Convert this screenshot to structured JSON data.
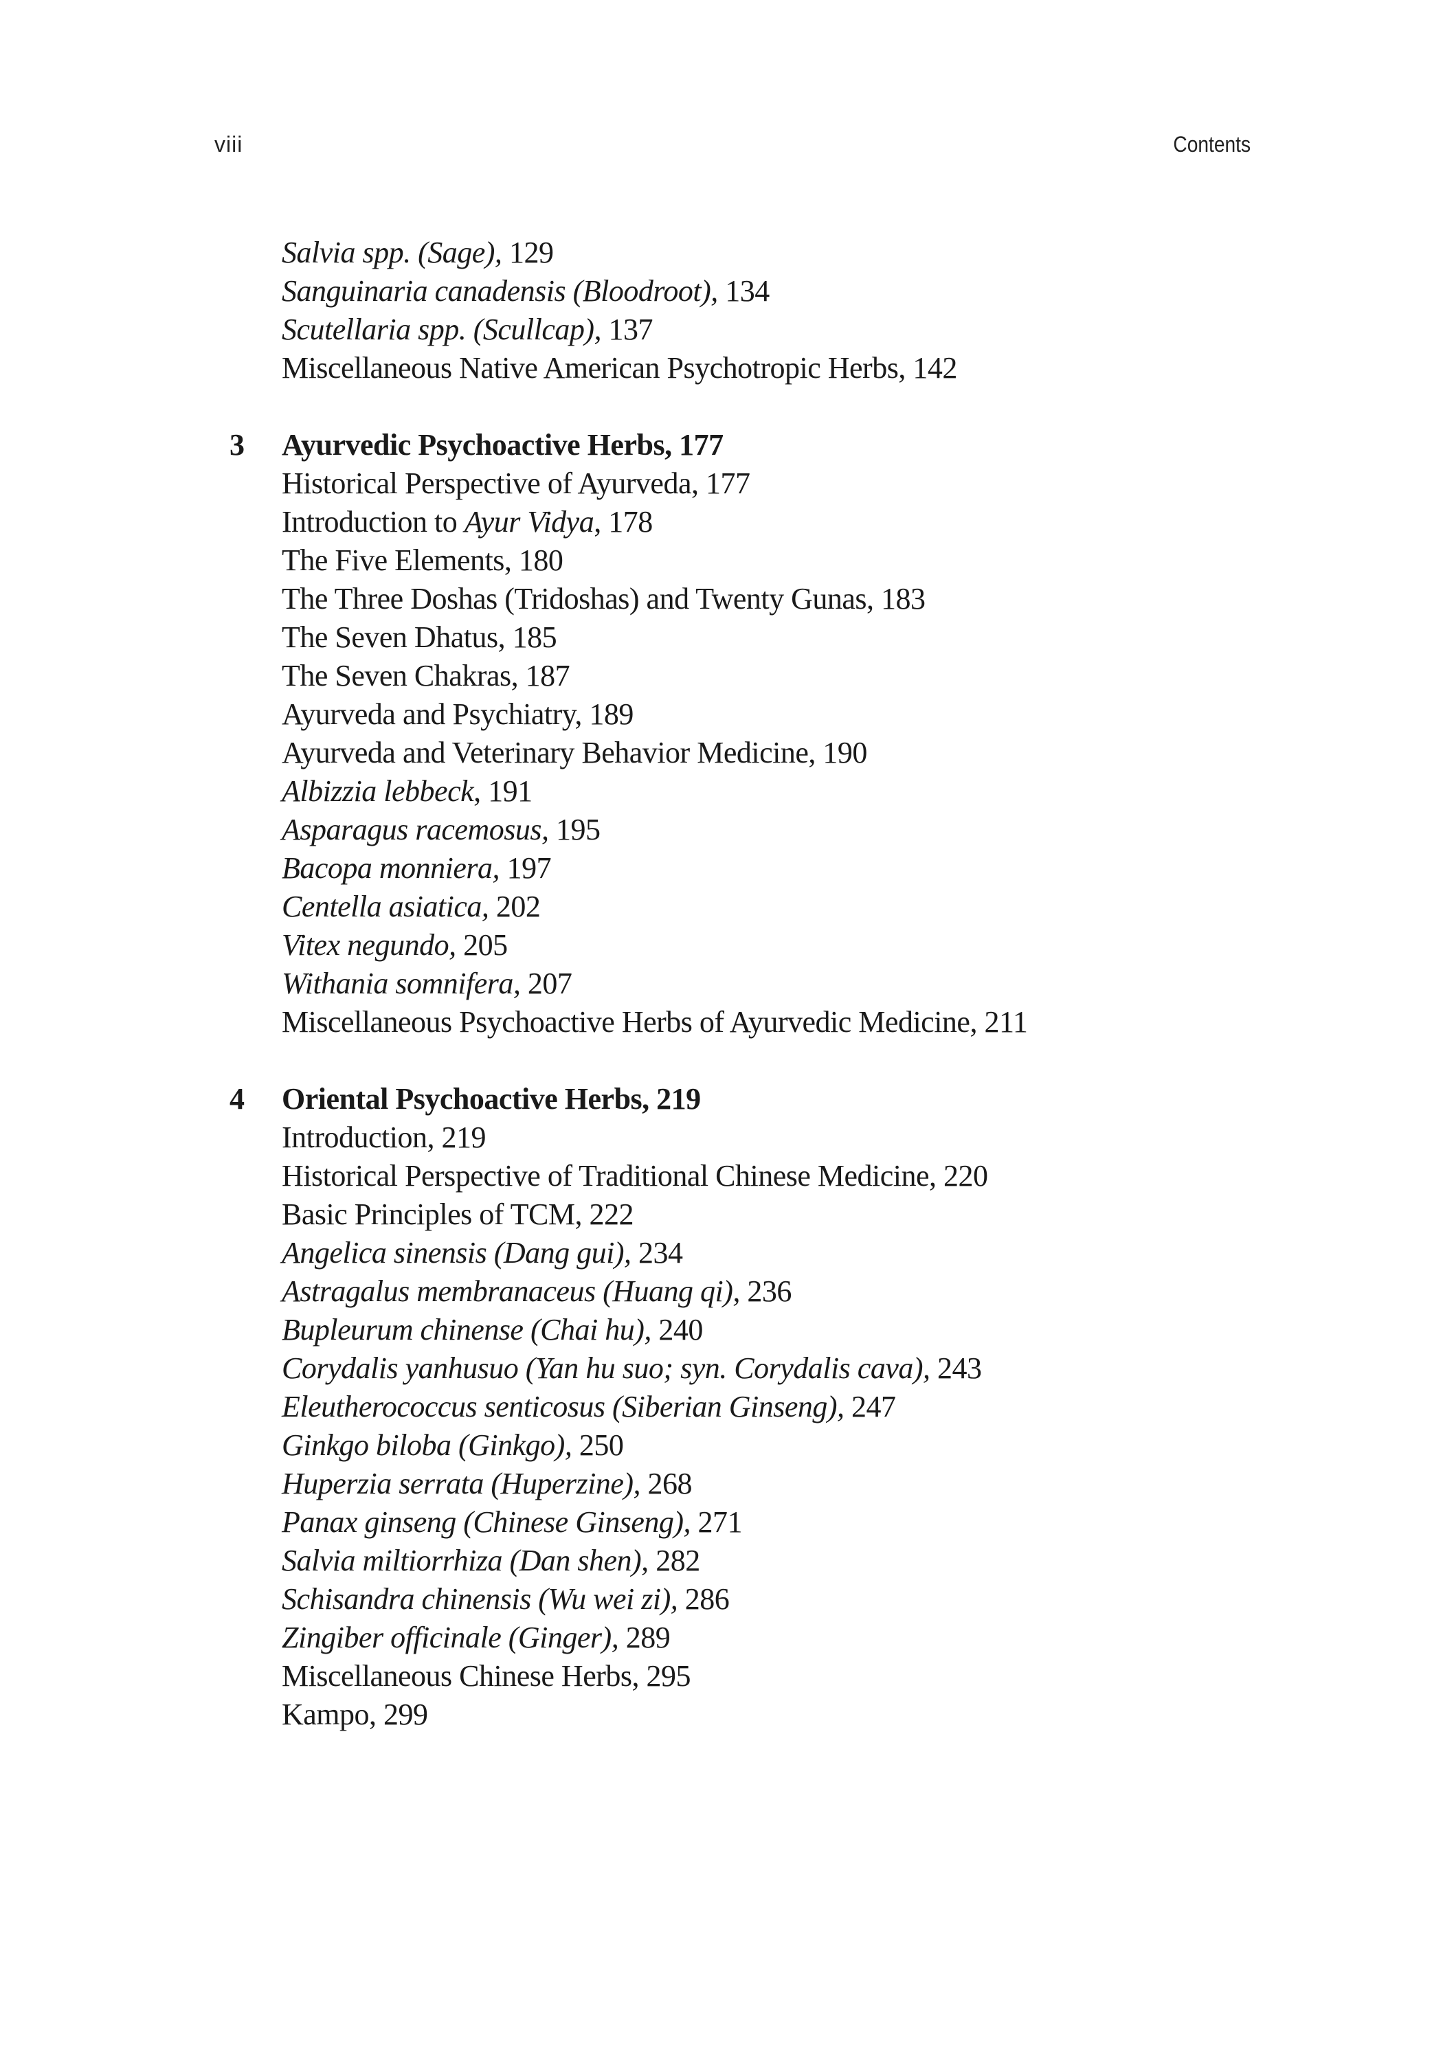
{
  "header": {
    "folio": "viii",
    "running_title": "Contents"
  },
  "groups": [
    {
      "entries": [
        {
          "segments": [
            {
              "text": "Salvia spp. (Sage),",
              "italic": true
            },
            {
              "text": " 129",
              "italic": false
            }
          ]
        },
        {
          "segments": [
            {
              "text": "Sanguinaria canadensis (Bloodroot),",
              "italic": true
            },
            {
              "text": " 134",
              "italic": false
            }
          ]
        },
        {
          "segments": [
            {
              "text": "Scutellaria spp. (Scullcap),",
              "italic": true
            },
            {
              "text": " 137",
              "italic": false
            }
          ]
        },
        {
          "segments": [
            {
              "text": "Miscellaneous Native American Psychotropic Herbs, 142",
              "italic": false
            }
          ]
        }
      ]
    },
    {
      "chapter_number": "3",
      "chapter_title": "Ayurvedic Psychoactive Herbs, 177",
      "entries": [
        {
          "segments": [
            {
              "text": "Historical Perspective of Ayurveda, 177",
              "italic": false
            }
          ]
        },
        {
          "segments": [
            {
              "text": "Introduction to ",
              "italic": false
            },
            {
              "text": "Ayur Vidya",
              "italic": true
            },
            {
              "text": ", 178",
              "italic": false
            }
          ]
        },
        {
          "segments": [
            {
              "text": "The Five Elements, 180",
              "italic": false
            }
          ]
        },
        {
          "segments": [
            {
              "text": "The Three Doshas (Tridoshas) and Twenty Gunas, 183",
              "italic": false
            }
          ]
        },
        {
          "segments": [
            {
              "text": "The Seven Dhatus, 185",
              "italic": false
            }
          ]
        },
        {
          "segments": [
            {
              "text": "The Seven Chakras, 187",
              "italic": false
            }
          ]
        },
        {
          "segments": [
            {
              "text": "Ayurveda and Psychiatry, 189",
              "italic": false
            }
          ]
        },
        {
          "segments": [
            {
              "text": "Ayurveda and Veterinary Behavior Medicine, 190",
              "italic": false
            }
          ]
        },
        {
          "segments": [
            {
              "text": "Albizzia lebbeck",
              "italic": true
            },
            {
              "text": ", 191",
              "italic": false
            }
          ]
        },
        {
          "segments": [
            {
              "text": "Asparagus racemosus,",
              "italic": true
            },
            {
              "text": " 195",
              "italic": false
            }
          ]
        },
        {
          "segments": [
            {
              "text": "Bacopa monniera,",
              "italic": true
            },
            {
              "text": " 197",
              "italic": false
            }
          ]
        },
        {
          "segments": [
            {
              "text": "Centella asiatica,",
              "italic": true
            },
            {
              "text": " 202",
              "italic": false
            }
          ]
        },
        {
          "segments": [
            {
              "text": "Vitex negundo,",
              "italic": true
            },
            {
              "text": " 205",
              "italic": false
            }
          ]
        },
        {
          "segments": [
            {
              "text": "Withania somnifera,",
              "italic": true
            },
            {
              "text": " 207",
              "italic": false
            }
          ]
        },
        {
          "segments": [
            {
              "text": "Miscellaneous Psychoactive Herbs of Ayurvedic Medicine, 211",
              "italic": false
            }
          ]
        }
      ]
    },
    {
      "chapter_number": "4",
      "chapter_title": "Oriental Psychoactive Herbs, 219",
      "entries": [
        {
          "segments": [
            {
              "text": "Introduction, 219",
              "italic": false
            }
          ]
        },
        {
          "segments": [
            {
              "text": "Historical Perspective of Traditional Chinese Medicine, 220",
              "italic": false
            }
          ]
        },
        {
          "segments": [
            {
              "text": "Basic Principles of TCM, 222",
              "italic": false
            }
          ]
        },
        {
          "segments": [
            {
              "text": "Angelica sinensis (Dang gui),",
              "italic": true
            },
            {
              "text": " 234",
              "italic": false
            }
          ]
        },
        {
          "segments": [
            {
              "text": "Astragalus membranaceus (Huang qi),",
              "italic": true
            },
            {
              "text": " 236",
              "italic": false
            }
          ]
        },
        {
          "segments": [
            {
              "text": "Bupleurum chinense (Chai hu),",
              "italic": true
            },
            {
              "text": " 240",
              "italic": false
            }
          ]
        },
        {
          "segments": [
            {
              "text": "Corydalis yanhusuo (Yan hu suo; syn. Corydalis cava),",
              "italic": true
            },
            {
              "text": " 243",
              "italic": false
            }
          ]
        },
        {
          "segments": [
            {
              "text": "Eleutherococcus senticosus (Siberian Ginseng),",
              "italic": true
            },
            {
              "text": " 247",
              "italic": false
            }
          ]
        },
        {
          "segments": [
            {
              "text": "Ginkgo biloba (Ginkgo),",
              "italic": true
            },
            {
              "text": " 250",
              "italic": false
            }
          ]
        },
        {
          "segments": [
            {
              "text": "Huperzia serrata (Huperzine),",
              "italic": true
            },
            {
              "text": " 268",
              "italic": false
            }
          ]
        },
        {
          "segments": [
            {
              "text": "Panax ginseng (Chinese Ginseng),",
              "italic": true
            },
            {
              "text": " 271",
              "italic": false
            }
          ]
        },
        {
          "segments": [
            {
              "text": "Salvia miltiorrhiza (Dan shen),",
              "italic": true
            },
            {
              "text": " 282",
              "italic": false
            }
          ]
        },
        {
          "segments": [
            {
              "text": "Schisandra chinensis (Wu wei zi),",
              "italic": true
            },
            {
              "text": " 286",
              "italic": false
            }
          ]
        },
        {
          "segments": [
            {
              "text": "Zingiber officinale (Ginger),",
              "italic": true
            },
            {
              "text": " 289",
              "italic": false
            }
          ]
        },
        {
          "segments": [
            {
              "text": "Miscellaneous Chinese Herbs, 295",
              "italic": false
            }
          ]
        },
        {
          "segments": [
            {
              "text": "Kampo, 299",
              "italic": false
            }
          ]
        }
      ]
    }
  ]
}
